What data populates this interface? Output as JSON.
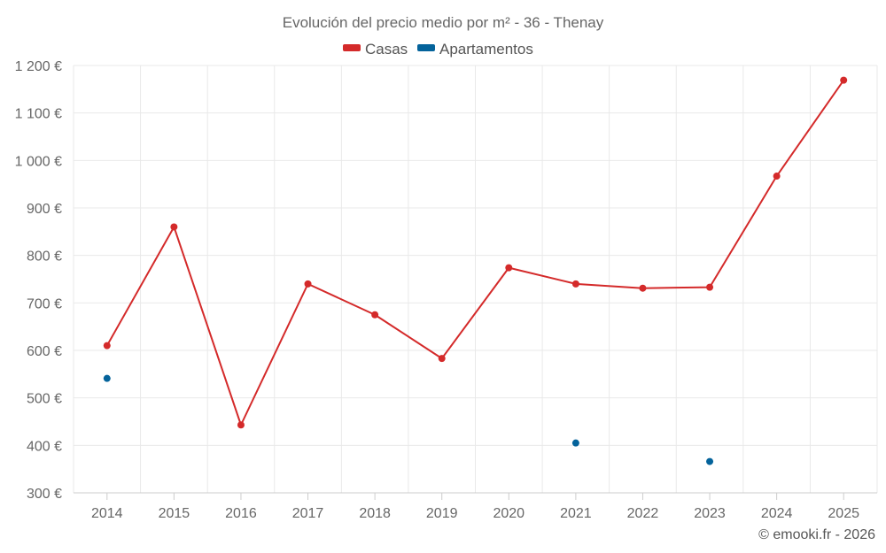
{
  "chart_data": {
    "type": "line",
    "title": "Evolución del precio medio por m² - 36 - Thenay",
    "categories": [
      "2014",
      "2015",
      "2016",
      "2017",
      "2018",
      "2019",
      "2020",
      "2021",
      "2022",
      "2023",
      "2024",
      "2025"
    ],
    "series": [
      {
        "name": "Casas",
        "color": "#d42a2a",
        "values": [
          610,
          860,
          443,
          740,
          675,
          583,
          774,
          740,
          731,
          733,
          967,
          1169
        ]
      },
      {
        "name": "Apartamentos",
        "color": "#04639b",
        "values": [
          541,
          null,
          null,
          null,
          null,
          null,
          null,
          405,
          null,
          366,
          null,
          null
        ]
      }
    ],
    "ylim": [
      300,
      1200
    ],
    "yticks": [
      300,
      400,
      500,
      600,
      700,
      800,
      900,
      1000,
      1100,
      1200
    ],
    "ytick_labels": [
      "300 €",
      "400 €",
      "500 €",
      "600 €",
      "700 €",
      "800 €",
      "900 €",
      "1 000 €",
      "1 100 €",
      "1 200 €"
    ],
    "xlabel": "",
    "ylabel": "",
    "grid": true,
    "legend": "top-center"
  },
  "credit": "© emooki.fr - 2026"
}
